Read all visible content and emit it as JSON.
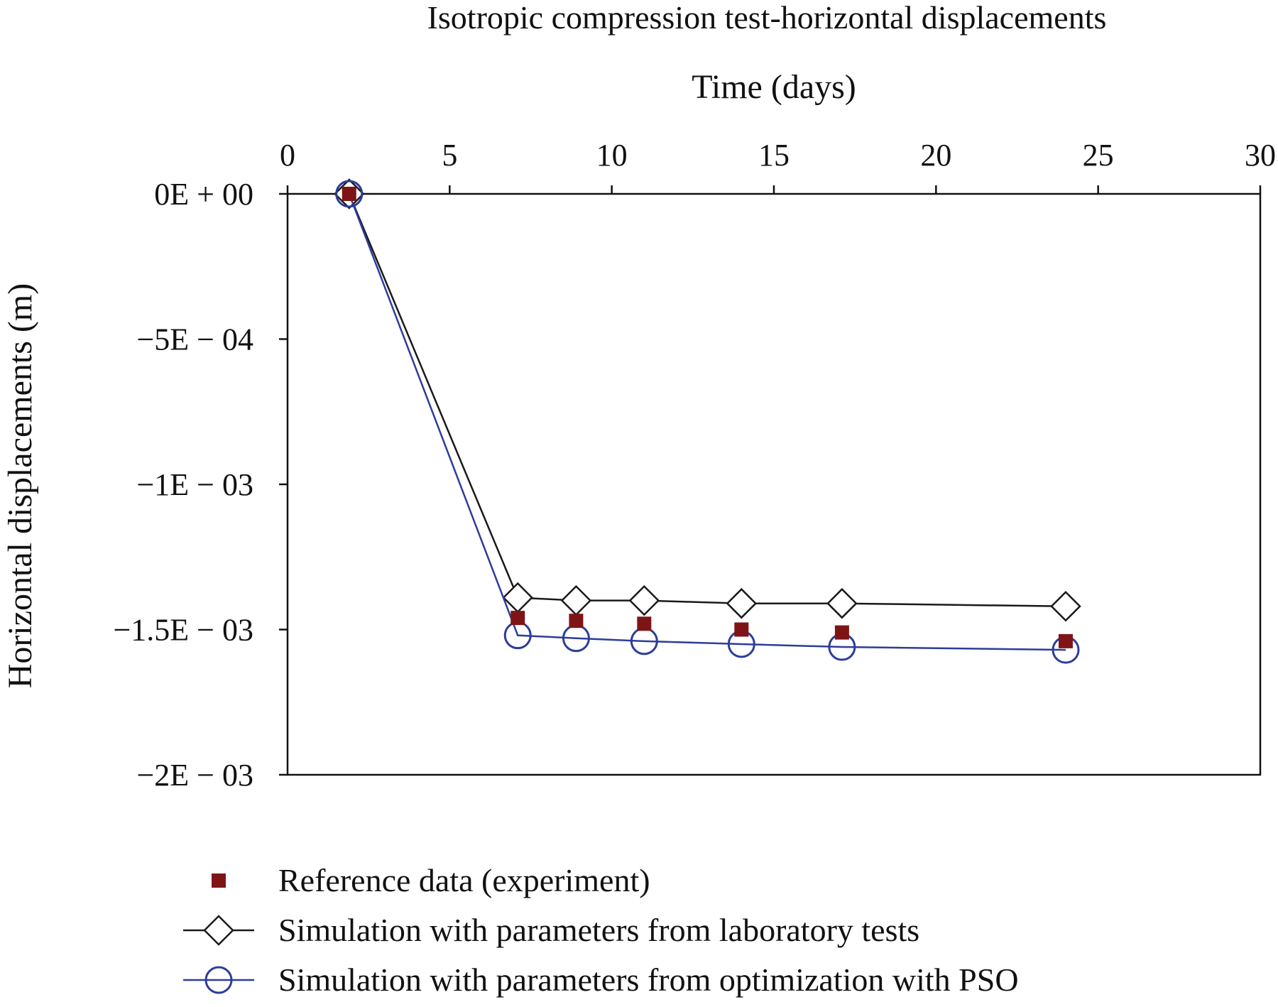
{
  "chart_data": {
    "type": "line",
    "title": "Isotropic compression test-horizontal displacements",
    "xlabel": "Time (days)",
    "ylabel": "Horizontal displacements (m)",
    "x_axis_position": "top",
    "xlim": [
      0,
      30
    ],
    "ylim": [
      -0.002,
      0
    ],
    "x_ticks": [
      0,
      5,
      10,
      15,
      20,
      25,
      30
    ],
    "x_tick_labels": [
      "0",
      "5",
      "10",
      "15",
      "20",
      "25",
      "30"
    ],
    "y_ticks": [
      0,
      -0.0005,
      -0.001,
      -0.0015,
      -0.002
    ],
    "y_tick_labels": [
      "0E + 00",
      "−5E − 04",
      "−1E − 03",
      "−1.5E − 03",
      "−2E − 03"
    ],
    "grid": false,
    "legend_position": "bottom",
    "series": [
      {
        "name": "Reference data (experiment)",
        "marker": "square",
        "line": false,
        "color": "#7f1416",
        "x": [
          1.9,
          7.1,
          8.9,
          11.0,
          14.0,
          17.1,
          24.0
        ],
        "y": [
          0,
          -0.00146,
          -0.00147,
          -0.00148,
          -0.0015,
          -0.00151,
          -0.00154
        ]
      },
      {
        "name": "Simulation with parameters from laboratory tests",
        "marker": "diamond",
        "line": true,
        "color": "#1a1a1a",
        "x": [
          1.9,
          7.1,
          8.9,
          11.0,
          14.0,
          17.1,
          24.0
        ],
        "y": [
          0,
          -0.00139,
          -0.0014,
          -0.0014,
          -0.00141,
          -0.00141,
          -0.00142
        ]
      },
      {
        "name": "Simulation with parameters from optimization with PSO",
        "marker": "circle",
        "line": true,
        "color": "#2d3d9a",
        "x": [
          1.9,
          7.1,
          8.9,
          11.0,
          14.0,
          17.1,
          24.0
        ],
        "y": [
          0,
          -0.00152,
          -0.00153,
          -0.00154,
          -0.00155,
          -0.00156,
          -0.00157
        ]
      }
    ]
  }
}
